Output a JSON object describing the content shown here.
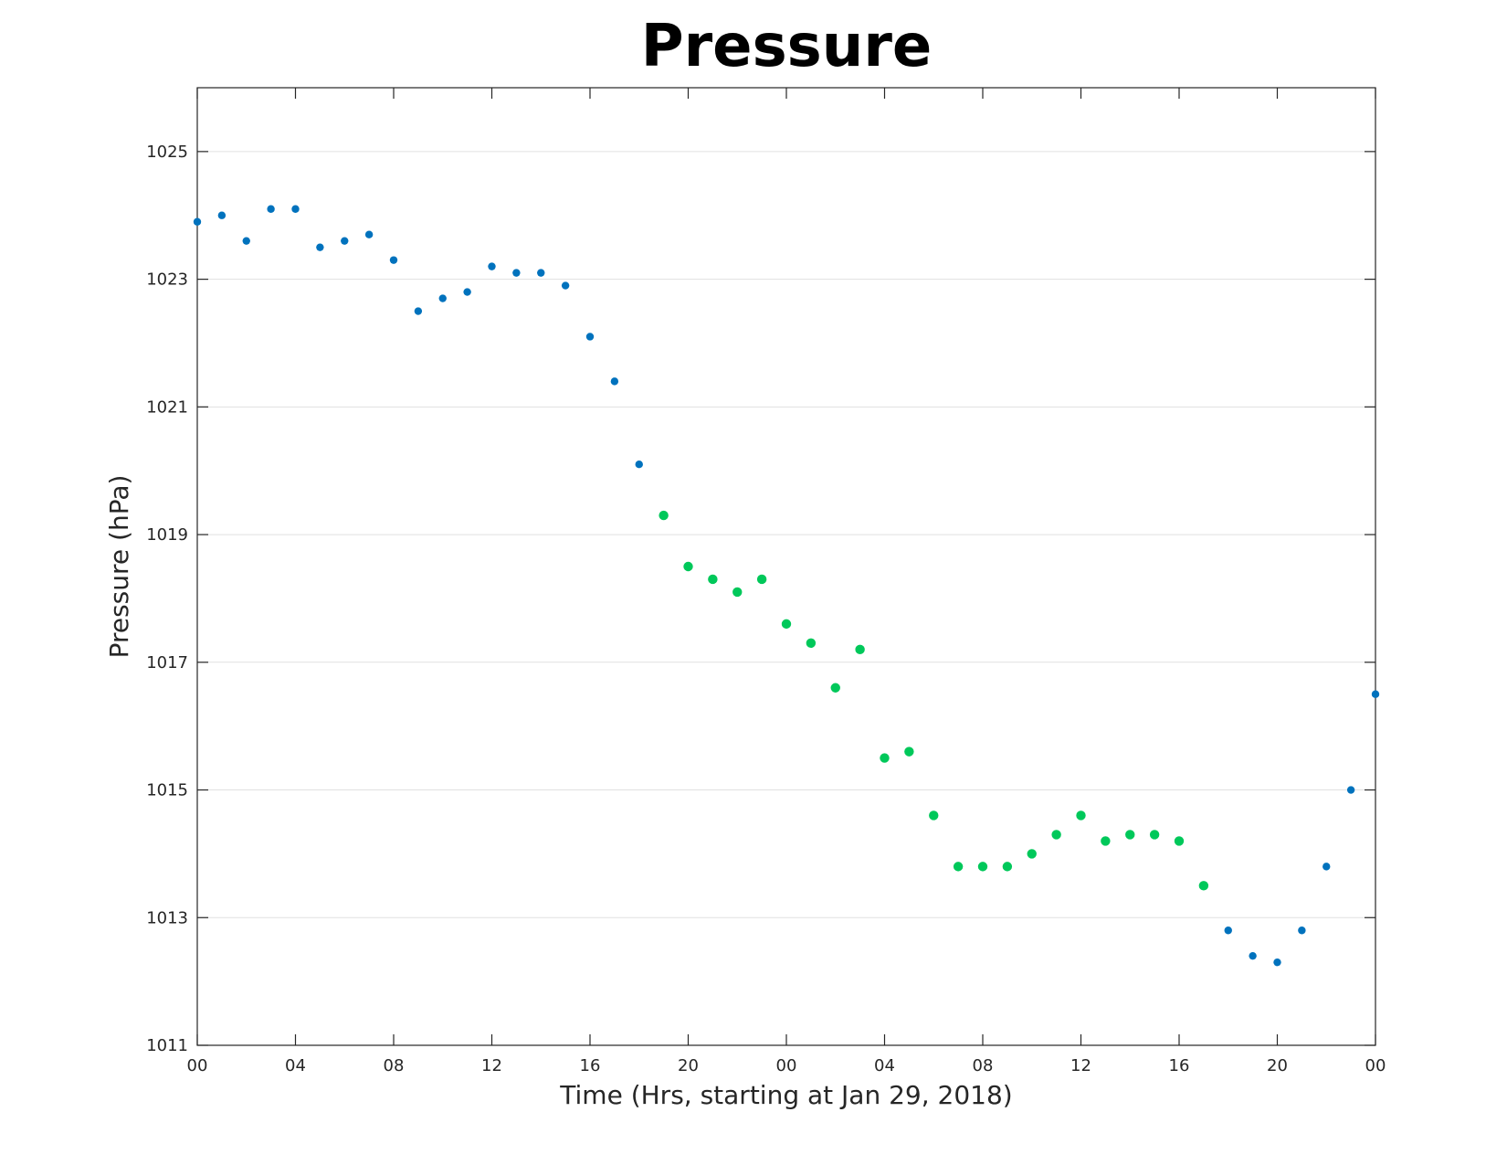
{
  "chart_data": {
    "type": "scatter",
    "title": "Pressure",
    "xlabel": "Time (Hrs, starting at Jan 29, 2018)",
    "ylabel": "Pressure (hPa)",
    "xlim": [
      0,
      48
    ],
    "ylim": [
      1011,
      1026
    ],
    "x_ticks": [
      {
        "value": 0,
        "label": "00"
      },
      {
        "value": 4,
        "label": "04"
      },
      {
        "value": 8,
        "label": "08"
      },
      {
        "value": 12,
        "label": "12"
      },
      {
        "value": 16,
        "label": "16"
      },
      {
        "value": 20,
        "label": "20"
      },
      {
        "value": 24,
        "label": "00"
      },
      {
        "value": 28,
        "label": "04"
      },
      {
        "value": 32,
        "label": "08"
      },
      {
        "value": 36,
        "label": "12"
      },
      {
        "value": 40,
        "label": "16"
      },
      {
        "value": 44,
        "label": "20"
      },
      {
        "value": 48,
        "label": "00"
      }
    ],
    "y_ticks": [
      1011,
      1013,
      1015,
      1017,
      1019,
      1021,
      1023,
      1025
    ],
    "grid": "horizontal",
    "series": [
      {
        "color": "#0072bd",
        "x": [
          0,
          1,
          2,
          3,
          4,
          5,
          6,
          7,
          8,
          9,
          10,
          11,
          12,
          13,
          14,
          15,
          16,
          17,
          18
        ],
        "y": [
          1023.9,
          1024.0,
          1023.6,
          1024.1,
          1024.1,
          1023.5,
          1023.6,
          1023.7,
          1023.3,
          1022.5,
          1022.7,
          1022.8,
          1023.2,
          1023.1,
          1023.1,
          1022.9,
          1022.1,
          1021.4,
          1020.1
        ]
      },
      {
        "color": "#00c85a",
        "x": [
          19,
          20,
          21,
          22,
          23,
          24,
          25,
          26,
          27,
          28,
          29,
          30,
          31,
          32,
          33,
          34,
          35,
          36,
          37,
          38,
          39,
          40,
          41
        ],
        "y": [
          1019.3,
          1018.5,
          1018.3,
          1018.1,
          1018.3,
          1017.6,
          1017.3,
          1016.6,
          1017.2,
          1015.5,
          1015.6,
          1014.6,
          1013.8,
          1013.8,
          1013.8,
          1014.0,
          1014.3,
          1014.6,
          1014.2,
          1014.3,
          1014.3,
          1014.2,
          1013.5
        ]
      },
      {
        "color": "#0072bd",
        "x": [
          42,
          43,
          44,
          45,
          46,
          47,
          48
        ],
        "y": [
          1012.8,
          1012.4,
          1012.3,
          1012.8,
          1013.8,
          1015.0,
          1016.5
        ]
      }
    ]
  }
}
